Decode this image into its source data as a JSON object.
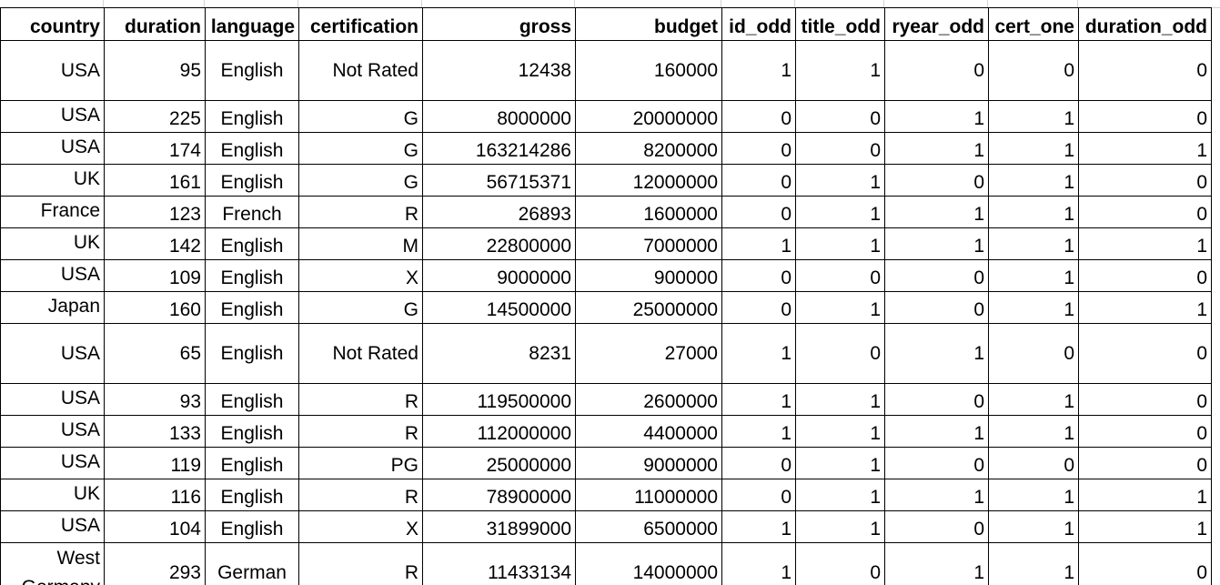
{
  "columns": [
    {
      "key": "country",
      "label": "country"
    },
    {
      "key": "duration",
      "label": "duration"
    },
    {
      "key": "language",
      "label": "language"
    },
    {
      "key": "certification",
      "label": "certification"
    },
    {
      "key": "gross",
      "label": "gross"
    },
    {
      "key": "budget",
      "label": "budget"
    },
    {
      "key": "id_odd",
      "label": "id_odd"
    },
    {
      "key": "title_odd",
      "label": "title_odd"
    },
    {
      "key": "ryear_odd",
      "label": "ryear_odd"
    },
    {
      "key": "cert_one",
      "label": "cert_one"
    },
    {
      "key": "duration_odd",
      "label": "duration_odd"
    }
  ],
  "rows": [
    [
      "USA",
      "95",
      "English",
      "Not Rated",
      "12438",
      "160000",
      "1",
      "1",
      "0",
      "0",
      "0"
    ],
    [
      "USA",
      "225",
      "English",
      "G",
      "8000000",
      "20000000",
      "0",
      "0",
      "1",
      "1",
      "0"
    ],
    [
      "USA",
      "174",
      "English",
      "G",
      "163214286",
      "8200000",
      "0",
      "0",
      "1",
      "1",
      "1"
    ],
    [
      "UK",
      "161",
      "English",
      "G",
      "56715371",
      "12000000",
      "0",
      "1",
      "0",
      "1",
      "0"
    ],
    [
      "France",
      "123",
      "French",
      "R",
      "26893",
      "1600000",
      "0",
      "1",
      "1",
      "1",
      "0"
    ],
    [
      "UK",
      "142",
      "English",
      "M",
      "22800000",
      "7000000",
      "1",
      "1",
      "1",
      "1",
      "1"
    ],
    [
      "USA",
      "109",
      "English",
      "X",
      "9000000",
      "900000",
      "0",
      "0",
      "0",
      "1",
      "0"
    ],
    [
      "Japan",
      "160",
      "English",
      "G",
      "14500000",
      "25000000",
      "0",
      "1",
      "0",
      "1",
      "1"
    ],
    [
      "USA",
      "65",
      "English",
      "Not Rated",
      "8231",
      "27000",
      "1",
      "0",
      "1",
      "0",
      "0"
    ],
    [
      "USA",
      "93",
      "English",
      "R",
      "119500000",
      "2600000",
      "1",
      "1",
      "0",
      "1",
      "0"
    ],
    [
      "USA",
      "133",
      "English",
      "R",
      "112000000",
      "4400000",
      "1",
      "1",
      "1",
      "1",
      "0"
    ],
    [
      "USA",
      "119",
      "English",
      "PG",
      "25000000",
      "9000000",
      "0",
      "1",
      "0",
      "0",
      "0"
    ],
    [
      "UK",
      "116",
      "English",
      "R",
      "78900000",
      "11000000",
      "0",
      "1",
      "1",
      "1",
      "1"
    ],
    [
      "USA",
      "104",
      "English",
      "X",
      "31899000",
      "6500000",
      "1",
      "1",
      "0",
      "1",
      "1"
    ],
    [
      "West Germany",
      "293",
      "German",
      "R",
      "11433134",
      "14000000",
      "1",
      "0",
      "1",
      "1",
      "0"
    ]
  ]
}
